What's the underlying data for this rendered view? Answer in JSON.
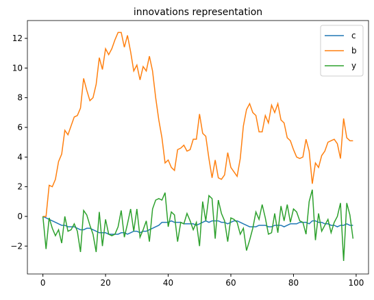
{
  "chart_data": {
    "type": "line",
    "title": "innovations representation",
    "x": [
      0,
      1,
      2,
      3,
      4,
      5,
      6,
      7,
      8,
      9,
      10,
      11,
      12,
      13,
      14,
      15,
      16,
      17,
      18,
      19,
      20,
      21,
      22,
      23,
      24,
      25,
      26,
      27,
      28,
      29,
      30,
      31,
      32,
      33,
      34,
      35,
      36,
      37,
      38,
      39,
      40,
      41,
      42,
      43,
      44,
      45,
      46,
      47,
      48,
      49,
      50,
      51,
      52,
      53,
      54,
      55,
      56,
      57,
      58,
      59,
      60,
      61,
      62,
      63,
      64,
      65,
      66,
      67,
      68,
      69,
      70,
      71,
      72,
      73,
      74,
      75,
      76,
      77,
      78,
      79,
      80,
      81,
      82,
      83,
      84,
      85,
      86,
      87,
      88,
      89,
      90,
      91,
      92,
      93,
      94,
      95,
      96,
      97,
      98,
      99
    ],
    "series": [
      {
        "name": "c",
        "color": "#1f77b4",
        "values": [
          0,
          -0.1,
          -0.2,
          -0.3,
          -0.4,
          -0.5,
          -0.6,
          -0.6,
          -0.7,
          -0.7,
          -0.7,
          -0.8,
          -0.9,
          -0.9,
          -0.8,
          -0.8,
          -0.9,
          -1.0,
          -1.1,
          -1.1,
          -1.1,
          -1.2,
          -1.2,
          -1.2,
          -1.2,
          -1.1,
          -1.1,
          -1.2,
          -1.1,
          -1.0,
          -1.0,
          -1.1,
          -1.0,
          -1.0,
          -0.9,
          -0.8,
          -0.7,
          -0.6,
          -0.4,
          -0.4,
          -0.4,
          -0.3,
          -0.4,
          -0.4,
          -0.4,
          -0.5,
          -0.5,
          -0.5,
          -0.5,
          -0.6,
          -0.5,
          -0.4,
          -0.3,
          -0.4,
          -0.3,
          -0.3,
          -0.3,
          -0.4,
          -0.4,
          -0.5,
          -0.4,
          -0.3,
          -0.3,
          -0.4,
          -0.5,
          -0.6,
          -0.7,
          -0.7,
          -0.7,
          -0.6,
          -0.6,
          -0.6,
          -0.7,
          -0.7,
          -0.6,
          -0.6,
          -0.6,
          -0.7,
          -0.6,
          -0.5,
          -0.5,
          -0.5,
          -0.4,
          -0.4,
          -0.4,
          -0.5,
          -0.3,
          -0.3,
          -0.4,
          -0.4,
          -0.5,
          -0.5,
          -0.6,
          -0.6,
          -0.7,
          -0.6,
          -0.6,
          -0.5,
          -0.6,
          -0.6
        ]
      },
      {
        "name": "b",
        "color": "#ff7f0e",
        "values": [
          0,
          0,
          2.1,
          2.0,
          2.5,
          3.7,
          4.2,
          5.8,
          5.5,
          6.1,
          6.7,
          6.8,
          7.3,
          9.3,
          8.5,
          7.8,
          8.0,
          8.9,
          10.7,
          9.9,
          11.3,
          10.9,
          11.3,
          11.9,
          12.4,
          12.4,
          11.4,
          12.2,
          11.1,
          9.8,
          10.2,
          9.2,
          10.1,
          9.8,
          10.8,
          9.8,
          8.0,
          6.5,
          5.3,
          3.6,
          3.8,
          3.3,
          3.1,
          4.5,
          4.6,
          4.8,
          4.4,
          4.5,
          5.2,
          5.2,
          6.9,
          5.6,
          5.4,
          3.9,
          2.6,
          3.8,
          2.6,
          2.5,
          2.8,
          4.3,
          3.3,
          3.0,
          2.7,
          3.9,
          6.1,
          7.2,
          7.6,
          7.0,
          6.8,
          5.7,
          5.7,
          6.8,
          6.3,
          7.5,
          7.0,
          7.6,
          6.5,
          6.3,
          5.3,
          5.1,
          4.5,
          4.0,
          3.9,
          4.0,
          5.2,
          4.4,
          2.2,
          3.6,
          3.3,
          4.1,
          4.4,
          5.0,
          5.1,
          5.2,
          4.9,
          3.9,
          6.6,
          5.3,
          5.1,
          5.1
        ]
      },
      {
        "name": "y",
        "color": "#2ca02c",
        "values": [
          0,
          -2.2,
          -0.1,
          -0.8,
          -1.3,
          -0.9,
          -1.8,
          0,
          -1.0,
          -0.9,
          -0.5,
          -1.0,
          -2.4,
          0.4,
          0.1,
          -0.6,
          -1.2,
          -2.4,
          0.3,
          -2.0,
          -0.2,
          -1.2,
          -1.3,
          -1.2,
          -0.7,
          0.4,
          -1.4,
          -0.5,
          0.5,
          -1.0,
          0.5,
          -1.4,
          -0.9,
          -0.3,
          -1.7,
          0.5,
          1.1,
          1.2,
          1.1,
          1.6,
          -0.7,
          0.3,
          0.1,
          -1.7,
          -0.4,
          -0.5,
          0.2,
          -0.3,
          -0.9,
          -0.4,
          -2.0,
          1.0,
          -0.3,
          1.4,
          1.2,
          -1.5,
          1.1,
          0.2,
          -0.3,
          -1.7,
          -0.1,
          -0.2,
          -0.4,
          -1.2,
          -0.8,
          -2.3,
          -1.6,
          -0.8,
          0.3,
          -0.2,
          0.8,
          -0.1,
          -1.2,
          -1.1,
          0.2,
          -1.1,
          0.7,
          -0.3,
          0.8,
          -0.4,
          0.5,
          0.3,
          -0.3,
          -0.4,
          -1.2,
          1.0,
          1.8,
          -1.6,
          0.2,
          -1.0,
          -0.6,
          -0.2,
          -1.1,
          -0.4,
          0.0,
          0.9,
          -3.0,
          0.9,
          0.1,
          -1.5
        ]
      }
    ],
    "xlim": [
      -4.95,
      103.95
    ],
    "xticks": [
      0,
      20,
      40,
      60,
      80,
      100
    ],
    "ylim": [
      -3.88,
      13.2
    ],
    "yticks": [
      {
        "value": -2,
        "label": "−2"
      },
      0,
      2,
      4,
      6,
      8,
      10,
      12
    ],
    "legend": "upper right"
  }
}
